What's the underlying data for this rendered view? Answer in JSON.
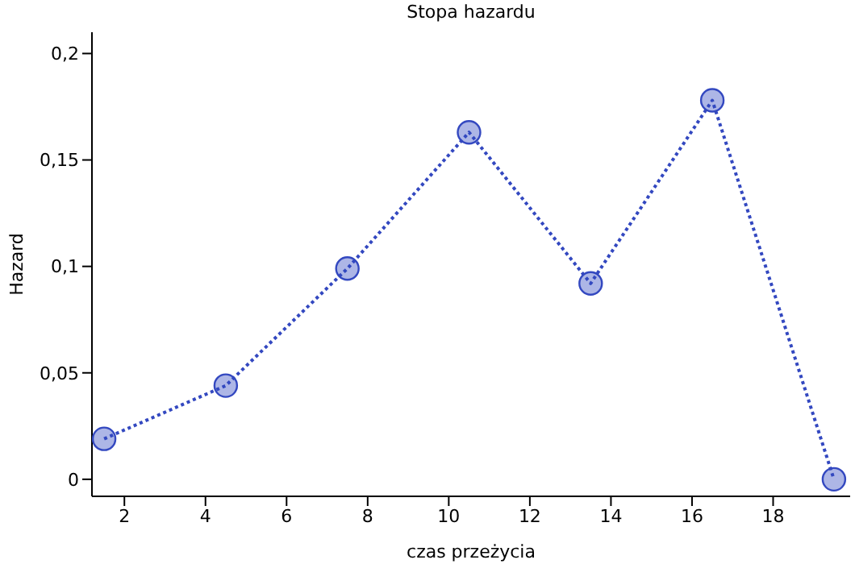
{
  "chart_data": {
    "type": "line",
    "title": "Stopa hazardu",
    "xlabel": "czas przeżycia",
    "ylabel": "Hazard",
    "x": [
      1.5,
      4.5,
      7.5,
      10.5,
      13.5,
      16.5,
      19.5
    ],
    "series": [
      {
        "color": "#3348c0",
        "values": [
          0.019,
          0.044,
          0.099,
          0.163,
          0.092,
          0.178,
          0.0
        ]
      }
    ],
    "xlim": [
      1.2,
      19.9
    ],
    "xticks": [
      2,
      4,
      6,
      8,
      10,
      12,
      14,
      16,
      18
    ],
    "ylim": [
      -0.008,
      0.21
    ],
    "yticks": [
      {
        "value": 0,
        "label": "0"
      },
      {
        "value": 0.05,
        "label": "0,05"
      },
      {
        "value": 0.1,
        "label": "0,1"
      },
      {
        "value": 0.15,
        "label": "0,15"
      },
      {
        "value": 0.2,
        "label": "0,2"
      }
    ],
    "grid": false,
    "legend": false,
    "marker": "circle",
    "line_style": "dotted"
  }
}
